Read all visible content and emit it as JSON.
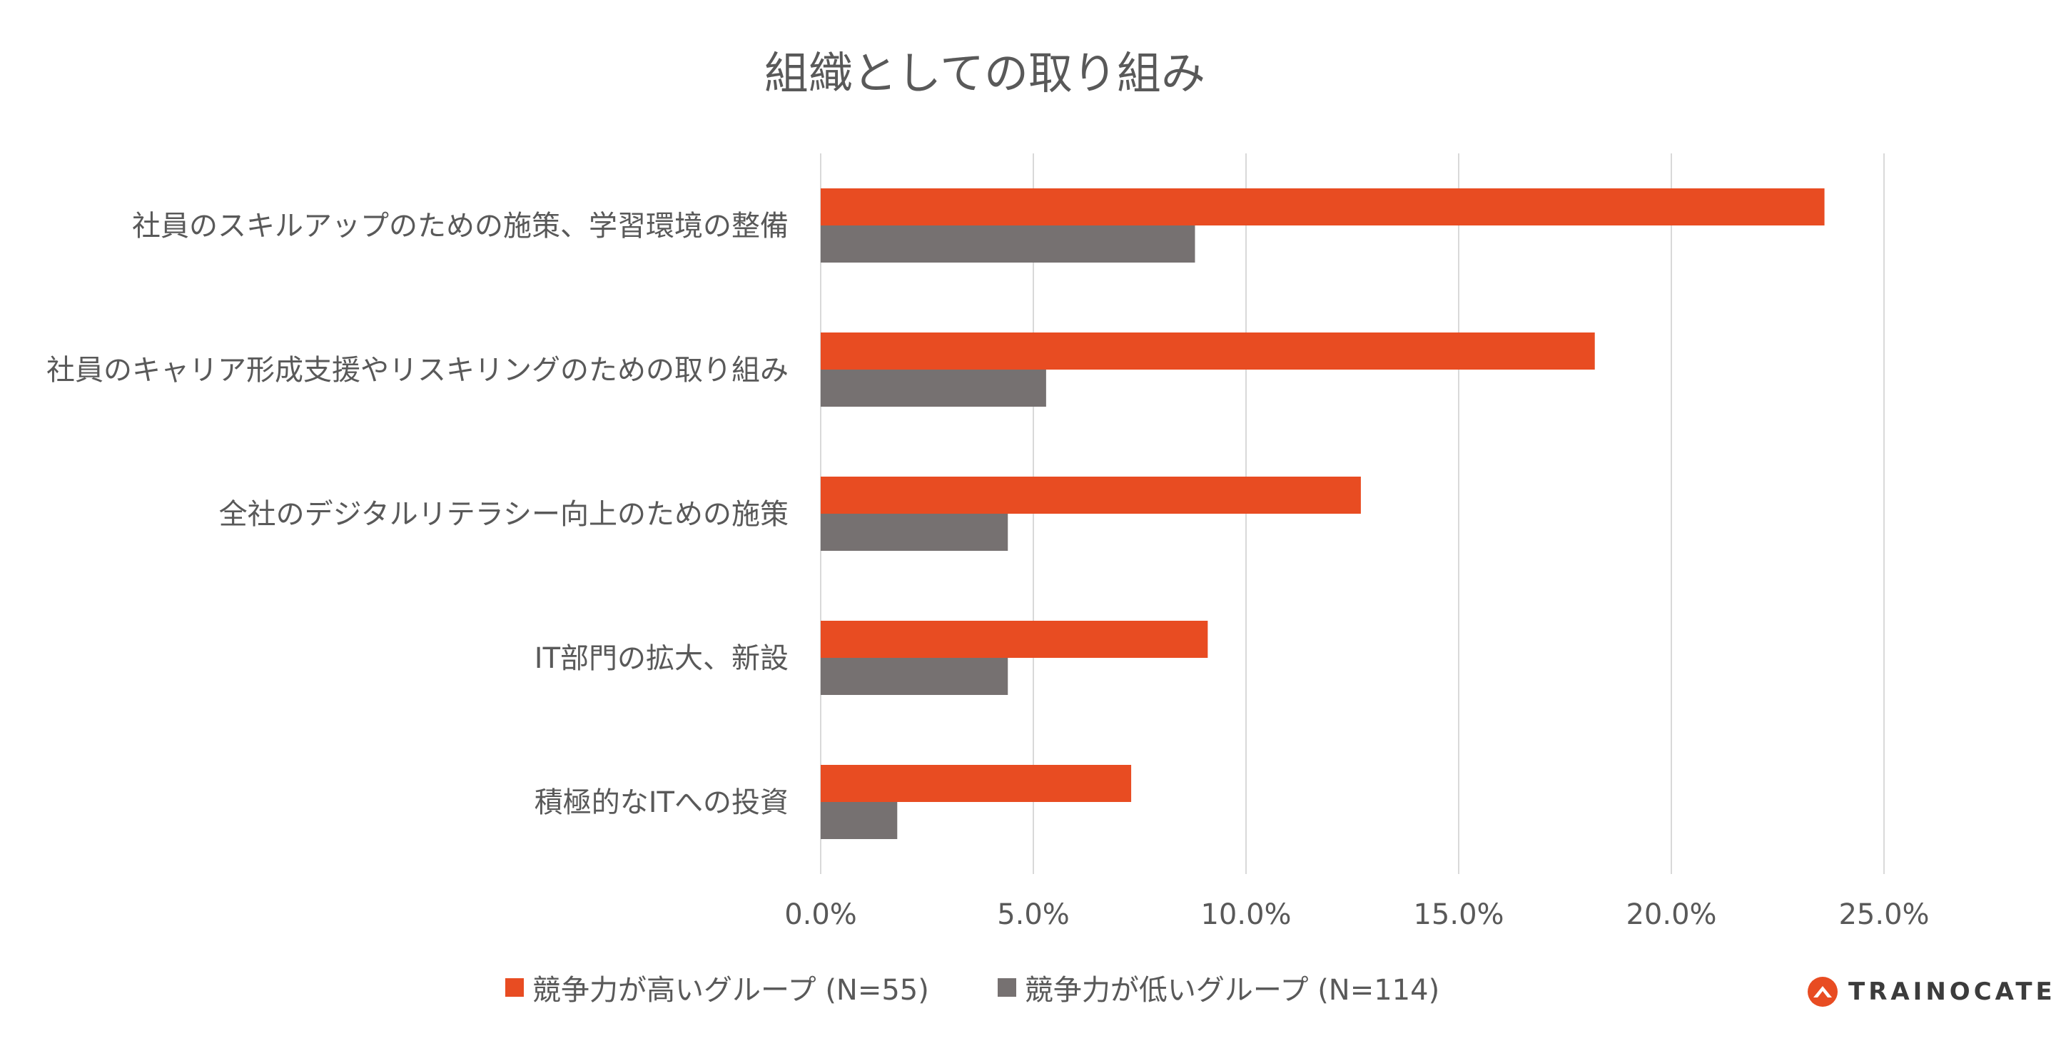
{
  "chart_data": {
    "type": "bar",
    "orientation": "horizontal",
    "title": "組織としての取り組み",
    "categories": [
      "社員のスキルアップのための施策、学習環境の整備",
      "社員のキャリア形成支援やリスキリングのための取り組み",
      "全社のデジタルリテラシー向上のための施策",
      "IT部門の拡大、新設",
      "積極的なITへの投資"
    ],
    "series": [
      {
        "name": "競争力が高いグループ (N=55)",
        "color": "#E84C22",
        "values": [
          23.6,
          18.2,
          12.7,
          9.1,
          7.3
        ]
      },
      {
        "name": "競争力が低いグループ (N=114)",
        "color": "#767171",
        "values": [
          8.8,
          5.3,
          4.4,
          4.4,
          1.8
        ]
      }
    ],
    "xlim": [
      0,
      25
    ],
    "ticks": [
      0,
      5,
      10,
      15,
      20,
      25
    ],
    "tick_labels": [
      "0.0%",
      "5.0%",
      "10.0%",
      "15.0%",
      "20.0%",
      "25.0%"
    ],
    "grid": true,
    "legend": "bottom",
    "xlabel": "",
    "ylabel": ""
  },
  "logo": {
    "text": "TRAINOCATE"
  },
  "colors": {
    "grid": "#D9D9D9",
    "text": "#595959"
  }
}
